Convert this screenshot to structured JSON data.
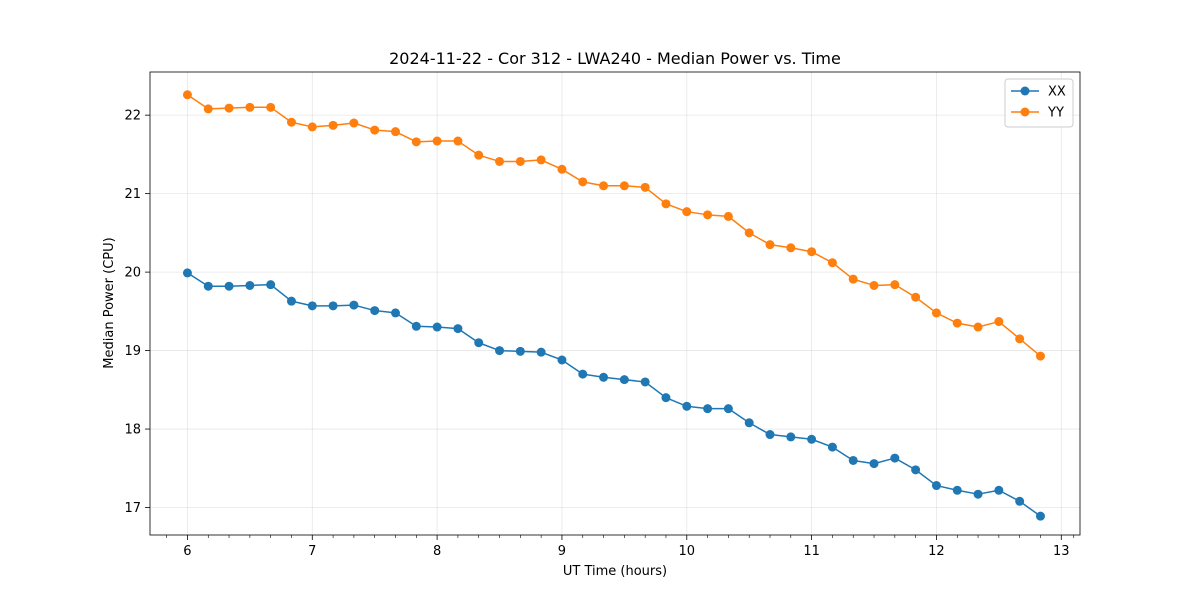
{
  "chart_data": {
    "type": "line",
    "title": "2024-11-22 - Cor 312 - LWA240 - Median Power vs. Time",
    "xlabel": "UT Time (hours)",
    "ylabel": "Median Power (CPU)",
    "xlim": [
      5.7,
      13.15
    ],
    "ylim": [
      16.65,
      22.55
    ],
    "x_ticks": [
      6,
      7,
      8,
      9,
      10,
      11,
      12,
      13
    ],
    "x_minor_ticks": [
      5.8333,
      6.1667,
      6.3333,
      6.5,
      6.6667,
      6.8333,
      7.1667,
      7.3333,
      7.5,
      7.6667,
      7.8333,
      8.1667,
      8.3333,
      8.5,
      8.6667,
      8.8333,
      9.1667,
      9.3333,
      9.5,
      9.6667,
      9.8333,
      10.1667,
      10.3333,
      10.5,
      10.6667,
      10.8333,
      11.1667,
      11.3333,
      11.5,
      11.6667,
      11.8333,
      12.1667,
      12.3333,
      12.5,
      12.6667,
      12.8333,
      13.1
    ],
    "y_ticks": [
      17,
      18,
      19,
      20,
      21,
      22
    ],
    "grid": true,
    "legend_position": "top-right",
    "x": [
      6.0,
      6.1667,
      6.3333,
      6.5,
      6.6667,
      6.8333,
      7.0,
      7.1667,
      7.3333,
      7.5,
      7.6667,
      7.8333,
      8.0,
      8.1667,
      8.3333,
      8.5,
      8.6667,
      8.8333,
      9.0,
      9.1667,
      9.3333,
      9.5,
      9.6667,
      9.8333,
      10.0,
      10.1667,
      10.3333,
      10.5,
      10.6667,
      10.8333,
      11.0,
      11.1667,
      11.3333,
      11.5,
      11.6667,
      11.8333,
      12.0,
      12.1667,
      12.3333,
      12.5,
      12.6667,
      12.8333
    ],
    "series": [
      {
        "name": "XX",
        "color": "#1f77b4",
        "values": [
          19.99,
          19.82,
          19.82,
          19.83,
          19.84,
          19.63,
          19.57,
          19.57,
          19.58,
          19.51,
          19.48,
          19.31,
          19.3,
          19.28,
          19.1,
          19.0,
          18.99,
          18.98,
          18.88,
          18.7,
          18.66,
          18.63,
          18.6,
          18.4,
          18.29,
          18.26,
          18.26,
          18.08,
          17.93,
          17.9,
          17.87,
          17.77,
          17.6,
          17.56,
          17.63,
          17.48,
          17.28,
          17.22,
          17.17,
          17.22,
          17.08,
          16.89
        ]
      },
      {
        "name": "YY",
        "color": "#ff7f0e",
        "values": [
          22.26,
          22.08,
          22.09,
          22.1,
          22.1,
          21.91,
          21.85,
          21.87,
          21.9,
          21.81,
          21.79,
          21.66,
          21.67,
          21.67,
          21.49,
          21.41,
          21.41,
          21.43,
          21.31,
          21.15,
          21.1,
          21.1,
          21.08,
          20.87,
          20.77,
          20.73,
          20.71,
          20.5,
          20.35,
          20.31,
          20.26,
          20.12,
          19.91,
          19.83,
          19.84,
          19.68,
          19.48,
          19.35,
          19.3,
          19.37,
          19.15,
          18.93
        ]
      }
    ]
  }
}
